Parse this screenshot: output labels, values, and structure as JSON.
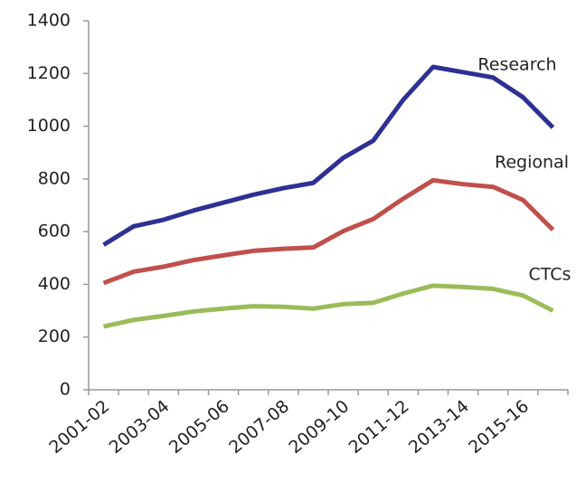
{
  "chart_data": {
    "type": "line",
    "categories": [
      "2001-02",
      null,
      "2003-04",
      null,
      "2005-06",
      null,
      "2007-08",
      null,
      "2009-10",
      null,
      "2011-12",
      null,
      "2013-14",
      null,
      "2015-16",
      null
    ],
    "series": [
      {
        "name": "Research",
        "color": "#2e3192",
        "values": [
          550,
          620,
          645,
          680,
          710,
          740,
          765,
          785,
          880,
          945,
          1100,
          1225,
          1205,
          1185,
          1110,
          995
        ]
      },
      {
        "name": "Regional",
        "color": "#c0504d",
        "values": [
          405,
          448,
          467,
          492,
          510,
          527,
          535,
          540,
          602,
          648,
          725,
          795,
          780,
          770,
          720,
          607
        ]
      },
      {
        "name": "CTCs",
        "color": "#9bbb59",
        "values": [
          240,
          265,
          280,
          297,
          308,
          317,
          315,
          308,
          325,
          330,
          365,
          395,
          390,
          383,
          358,
          300
        ]
      }
    ],
    "ylim": [
      0,
      1400
    ],
    "yticks": [
      0,
      200,
      400,
      600,
      800,
      1000,
      1200,
      1400
    ],
    "grid": false
  }
}
